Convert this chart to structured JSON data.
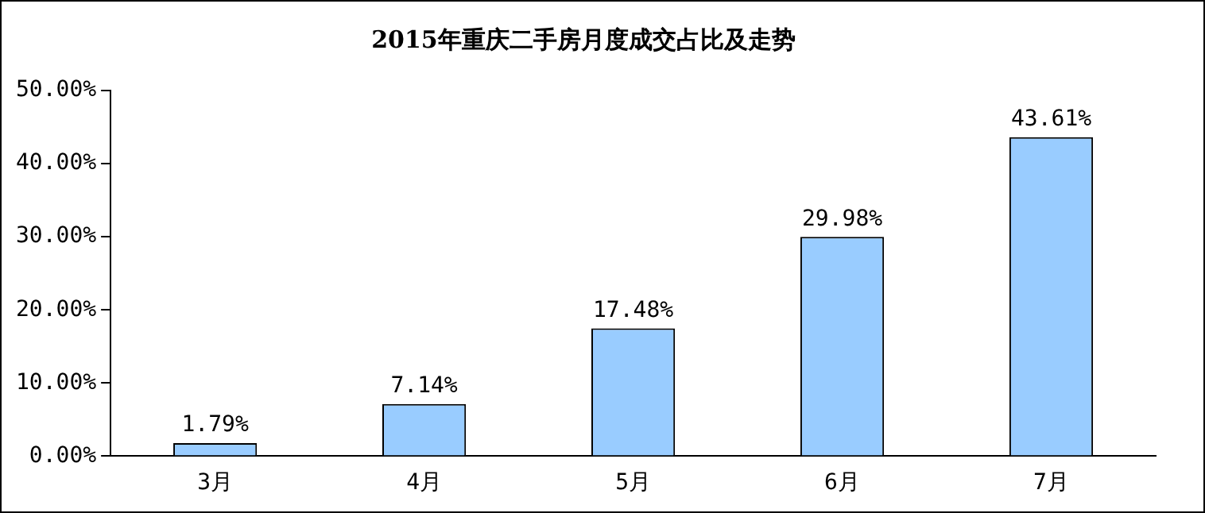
{
  "chart_data": {
    "type": "bar",
    "title": "2015年重庆二手房月度成交占比及走势",
    "categories": [
      "3月",
      "4月",
      "5月",
      "6月",
      "7月"
    ],
    "values": [
      1.79,
      7.14,
      17.48,
      29.98,
      43.61
    ],
    "value_labels": [
      "1.79%",
      "7.14%",
      "17.48%",
      "29.98%",
      "43.61%"
    ],
    "color": "#99ccff",
    "ylim": [
      0,
      50
    ],
    "yticks": [
      {
        "value": 0,
        "label": "0.00%"
      },
      {
        "value": 10,
        "label": "10.00%"
      },
      {
        "value": 20,
        "label": "20.00%"
      },
      {
        "value": 30,
        "label": "30.00%"
      },
      {
        "value": 40,
        "label": "40.00%"
      },
      {
        "value": 50,
        "label": "50.00%"
      }
    ],
    "grid": false,
    "legend": false
  }
}
